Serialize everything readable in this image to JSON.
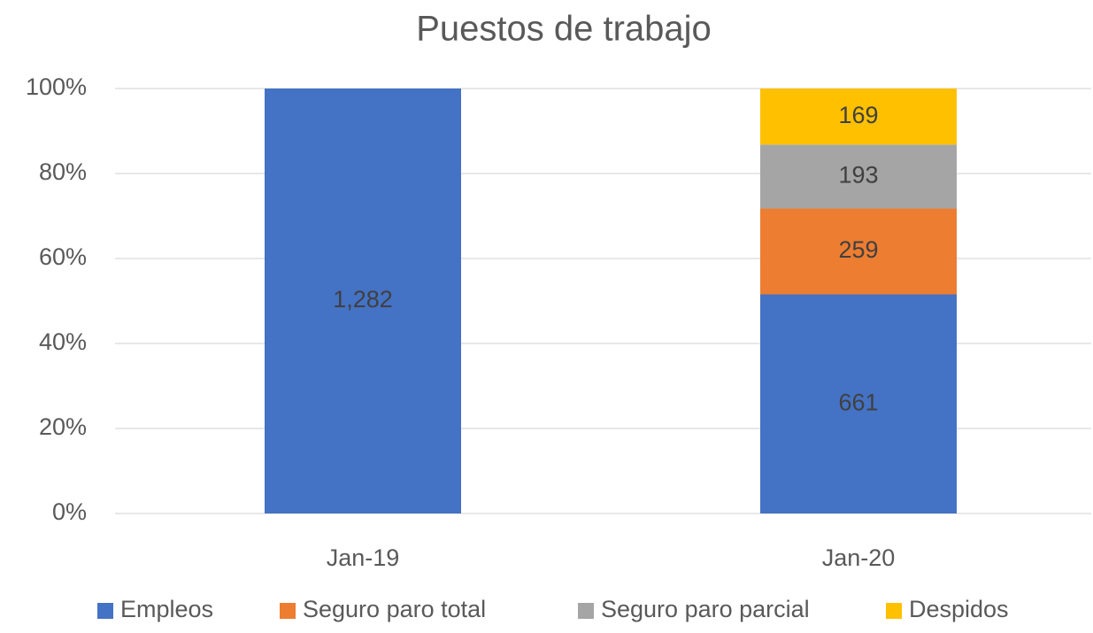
{
  "chart_data": {
    "type": "bar",
    "stacking": "percent",
    "title": "Puestos de trabajo",
    "categories": [
      "Jan-19",
      "Jan-20"
    ],
    "series": [
      {
        "name": "Empleos",
        "color": "#4472c4",
        "values": [
          1282,
          661
        ],
        "value_labels": [
          "1,282",
          "661"
        ]
      },
      {
        "name": "Seguro paro total",
        "color": "#ed7d31",
        "values": [
          null,
          259
        ]
      },
      {
        "name": "Seguro paro parcial",
        "color": "#a5a5a5",
        "values": [
          null,
          193
        ]
      },
      {
        "name": "Despidos",
        "color": "#ffc000",
        "values": [
          null,
          169
        ]
      }
    ],
    "ylim": [
      0,
      100
    ],
    "yticks": [
      {
        "value": 0,
        "label": "0%"
      },
      {
        "value": 20,
        "label": "20%"
      },
      {
        "value": 40,
        "label": "40%"
      },
      {
        "value": 60,
        "label": "60%"
      },
      {
        "value": 80,
        "label": "80%"
      },
      {
        "value": 100,
        "label": "100%"
      }
    ],
    "grid": true,
    "legend": "bottom"
  }
}
